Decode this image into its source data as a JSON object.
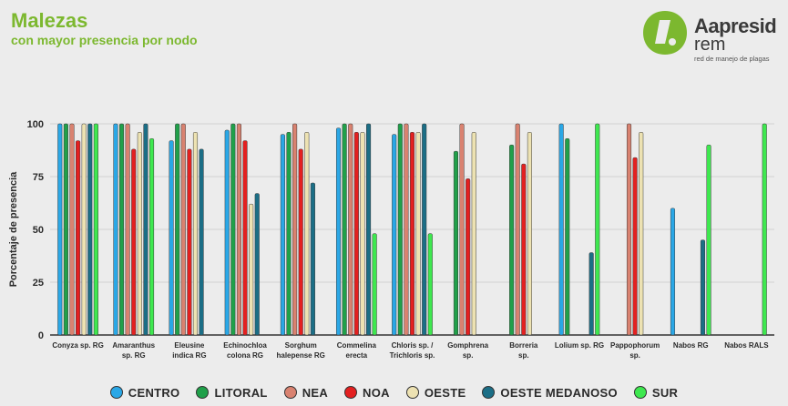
{
  "header": {
    "title": "Malezas",
    "subtitle": "con mayor presencia por nodo"
  },
  "logo": {
    "name": "Aapresid",
    "sub": "rem",
    "tagline": "red de manejo de plagas"
  },
  "colors": {
    "CENTRO": "#2aa7e6",
    "LITORAL": "#20a04a",
    "NEA": "#d98270",
    "NOA": "#e32020",
    "OESTE": "#ede2b2",
    "OESTE MEDANOSO": "#1b6e86",
    "SUR": "#3ee84f",
    "title_green": "#7cb82f"
  },
  "chart_data": {
    "type": "bar",
    "title": "",
    "xlabel": "",
    "ylabel": "Porcentaje de presencia",
    "ylim": [
      0,
      100
    ],
    "yticks": [
      0,
      25,
      50,
      75,
      100
    ],
    "grid": "horizontal",
    "legend_position": "bottom",
    "categories": [
      [
        "Conyza sp. RG"
      ],
      [
        "Amaranthus",
        "sp. RG"
      ],
      [
        "Eleusine",
        "indica RG"
      ],
      [
        "Echinochloa",
        "colona RG"
      ],
      [
        "Sorghum",
        "halepense RG"
      ],
      [
        "Commelina",
        "erecta"
      ],
      [
        "Chloris sp. /",
        "Trichloris sp."
      ],
      [
        "Gomphrena",
        "sp."
      ],
      [
        "Borreria",
        "sp."
      ],
      [
        "Lolium sp. RG"
      ],
      [
        "Pappophorum",
        "sp."
      ],
      [
        "Nabos RG"
      ],
      [
        "Nabos RALS"
      ]
    ],
    "series": [
      {
        "name": "CENTRO",
        "values": [
          100,
          100,
          92,
          97,
          95,
          98,
          95,
          null,
          null,
          100,
          null,
          60,
          null
        ]
      },
      {
        "name": "LITORAL",
        "values": [
          100,
          100,
          100,
          100,
          96,
          100,
          100,
          87,
          90,
          93,
          null,
          null,
          null
        ]
      },
      {
        "name": "NEA",
        "values": [
          100,
          100,
          100,
          100,
          100,
          100,
          100,
          100,
          100,
          null,
          100,
          null,
          null
        ]
      },
      {
        "name": "NOA",
        "values": [
          92,
          88,
          88,
          92,
          88,
          96,
          96,
          74,
          81,
          null,
          84,
          null,
          null
        ]
      },
      {
        "name": "OESTE",
        "values": [
          100,
          96,
          96,
          62,
          96,
          96,
          96,
          96,
          96,
          null,
          96,
          null,
          null
        ]
      },
      {
        "name": "OESTE MEDANOSO",
        "values": [
          100,
          100,
          88,
          67,
          72,
          100,
          100,
          null,
          null,
          39,
          null,
          45,
          null
        ]
      },
      {
        "name": "SUR",
        "values": [
          100,
          93,
          null,
          null,
          null,
          48,
          48,
          null,
          null,
          100,
          null,
          90,
          100
        ]
      }
    ]
  }
}
